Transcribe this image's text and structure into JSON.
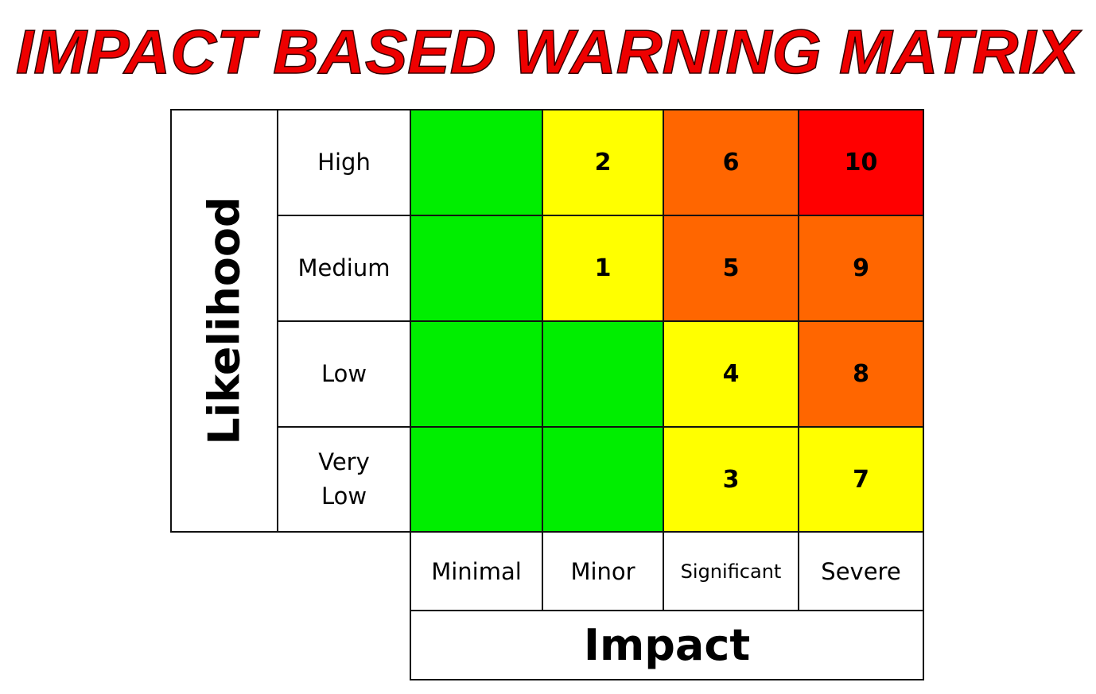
{
  "title": "IMPACT BASED WARNING MATRIX",
  "likelihood_label": "Likelihood",
  "impact_label": "Impact",
  "likelihood_levels": [
    "High",
    "Medium",
    "Low",
    "Very Low"
  ],
  "impact_levels": [
    "Minimal",
    "Minor",
    "Significant",
    "Severe"
  ],
  "cells": [
    [
      {
        "color": "#00ee00"
      },
      {
        "label": "2",
        "color": "#ffff00"
      },
      {
        "label": "6",
        "color": "#ff6600"
      },
      {
        "label": "10",
        "color": "#ff0000"
      }
    ],
    [
      {
        "color": "#00ee00"
      },
      {
        "label": "1",
        "color": "#ffff00"
      },
      {
        "label": "5",
        "color": "#ff6600"
      },
      {
        "label": "9",
        "color": "#ff6600"
      }
    ],
    [
      {
        "color": "#00ee00"
      },
      {
        "color": "#00ee00"
      },
      {
        "label": "4",
        "color": "#ffff00"
      },
      {
        "label": "8",
        "color": "#ff6600"
      }
    ],
    [
      {
        "color": "#00ee00"
      },
      {
        "color": "#00ee00"
      },
      {
        "label": "3",
        "color": "#ffff00"
      },
      {
        "label": "7",
        "color": "#ffff00"
      }
    ]
  ]
}
